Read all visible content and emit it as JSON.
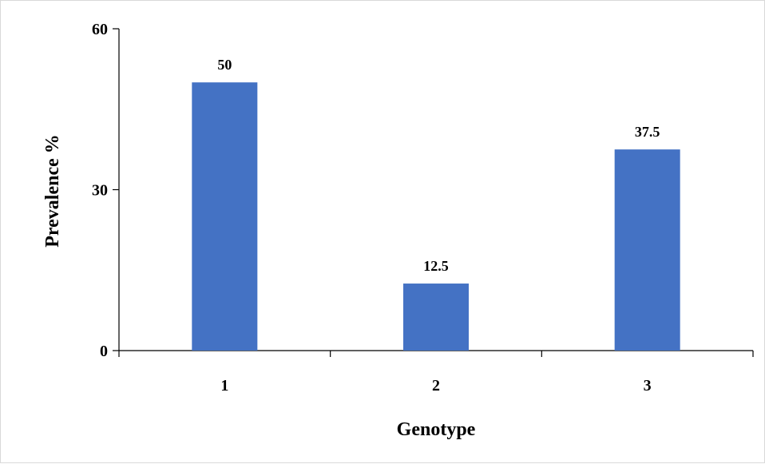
{
  "chart_data": {
    "type": "bar",
    "categories": [
      "1",
      "2",
      "3"
    ],
    "values": [
      50,
      12.5,
      37.5
    ],
    "data_labels": [
      "50",
      "12.5",
      "37.5"
    ],
    "xlabel": "Genotype",
    "ylabel": "Prevalence %",
    "ylim": [
      0,
      60
    ],
    "yticks": [
      "0",
      "30",
      "60"
    ],
    "grid": false,
    "bar_color": "#4472C4"
  }
}
